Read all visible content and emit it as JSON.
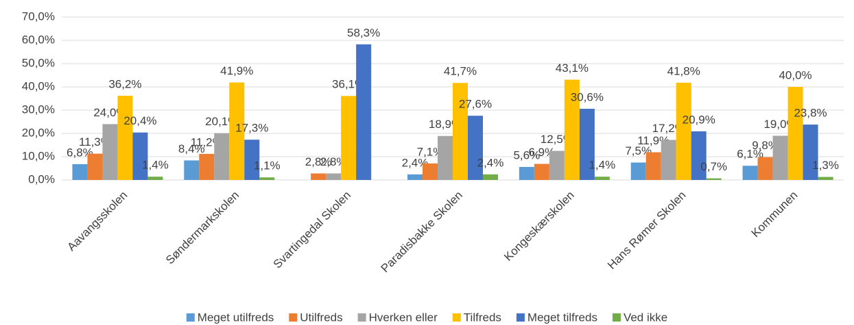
{
  "chart_data": {
    "type": "bar",
    "categories": [
      "Aavangsskolen",
      "Søndermarkskolen",
      "Svartingedal Skolen",
      "Paradisbakke Skolen",
      "Kongeskærskolen",
      "Hans Rømer Skolen",
      "Kommunen"
    ],
    "series": [
      {
        "name": "Meget utilfreds",
        "color": "#5b9bd5",
        "values": [
          6.8,
          8.4,
          null,
          2.4,
          5.6,
          7.5,
          6.1
        ],
        "value_labels": [
          "6,8%",
          "8,4%",
          null,
          "2,4%",
          "5,6%",
          "7,5%",
          "6,1%"
        ]
      },
      {
        "name": "Utilfreds",
        "color": "#ed7d31",
        "values": [
          11.3,
          11.2,
          2.8,
          7.1,
          6.9,
          11.9,
          9.8
        ],
        "value_labels": [
          "11,3%",
          "11,2%",
          "2,8%",
          "7,1%",
          "6,9%",
          "11,9%",
          "9,8%"
        ]
      },
      {
        "name": "Hverken eller",
        "color": "#a5a5a5",
        "values": [
          24.0,
          20.1,
          2.8,
          18.9,
          12.5,
          17.2,
          19.0
        ],
        "value_labels": [
          "24,0%",
          "20,1%",
          "2,8%",
          "18,9%",
          "12,5%",
          "17,2%",
          "19,0%"
        ]
      },
      {
        "name": "Tilfreds",
        "color": "#ffc000",
        "values": [
          36.2,
          41.9,
          36.1,
          41.7,
          43.1,
          41.8,
          40.0
        ],
        "value_labels": [
          "36,2%",
          "41,9%",
          "36,1%",
          "41,7%",
          "43,1%",
          "41,8%",
          "40,0%"
        ]
      },
      {
        "name": "Meget tilfreds",
        "color": "#4472c4",
        "values": [
          20.4,
          17.3,
          58.3,
          27.6,
          30.6,
          20.9,
          23.8
        ],
        "value_labels": [
          "20,4%",
          "17,3%",
          "58,3%",
          "27,6%",
          "30,6%",
          "20,9%",
          "23,8%"
        ]
      },
      {
        "name": "Ved ikke",
        "color": "#70ad47",
        "values": [
          1.4,
          1.1,
          null,
          2.4,
          1.4,
          0.7,
          1.3
        ],
        "value_labels": [
          "1,4%",
          "1,1%",
          null,
          "2,4%",
          "1,4%",
          "0,7%",
          "1,3%"
        ]
      }
    ],
    "ylim": [
      0,
      70
    ],
    "yticks": [
      {
        "value": 0,
        "label": "0,0%"
      },
      {
        "value": 10,
        "label": "10,0%"
      },
      {
        "value": 20,
        "label": "20,0%"
      },
      {
        "value": 30,
        "label": "30,0%"
      },
      {
        "value": 40,
        "label": "40,0%"
      },
      {
        "value": 50,
        "label": "50,0%"
      },
      {
        "value": 60,
        "label": "60,0%"
      },
      {
        "value": 70,
        "label": "70,0%"
      }
    ],
    "grid": true,
    "legend": "bottom"
  }
}
